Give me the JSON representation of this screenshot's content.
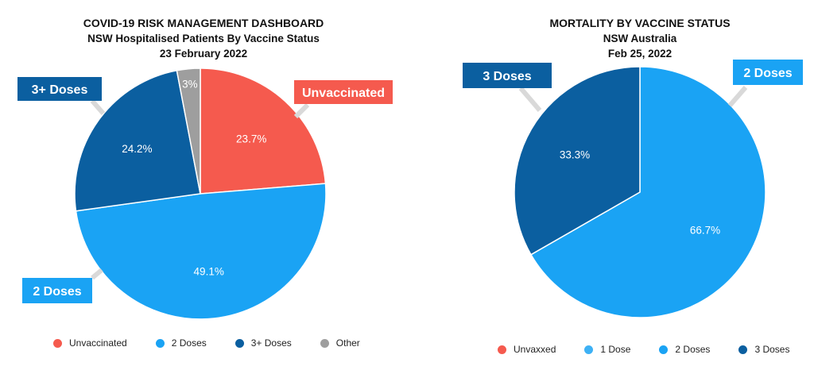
{
  "chart_data": [
    {
      "type": "pie",
      "title": "COVID-19 RISK MANAGEMENT DASHBOARD",
      "subtitle": "NSW Hospitalised Patients By Vaccine Status",
      "date": "23 February 2022",
      "slices": [
        {
          "label": "Unvaccinated",
          "value": 23.7,
          "value_label": "23.7%",
          "color": "#f55a4e",
          "callout": "Unvaccinated"
        },
        {
          "label": "2 Doses",
          "value": 49.1,
          "value_label": "49.1%",
          "color": "#1aa3f4",
          "callout": "2 Doses"
        },
        {
          "label": "3+ Doses",
          "value": 24.2,
          "value_label": "24.2%",
          "color": "#0b5fa0",
          "callout": "3+ Doses"
        },
        {
          "label": "Other",
          "value": 3,
          "value_label": "3%",
          "color": "#9e9e9e",
          "callout": ""
        }
      ],
      "legend": [
        {
          "label": "Unvaccinated",
          "color": "#f55a4e"
        },
        {
          "label": "2 Doses",
          "color": "#1aa3f4"
        },
        {
          "label": "3+ Doses",
          "color": "#0b5fa0"
        },
        {
          "label": "Other",
          "color": "#9e9e9e"
        }
      ],
      "legend_position": "bottom"
    },
    {
      "type": "pie",
      "title": "MORTALITY BY VACCINE STATUS",
      "subtitle": "NSW Australia",
      "date": "Feb 25, 2022",
      "slices": [
        {
          "label": "2 Doses",
          "value": 66.7,
          "value_label": "66.7%",
          "color": "#1aa3f4",
          "callout": "2 Doses"
        },
        {
          "label": "3 Doses",
          "value": 33.3,
          "value_label": "33.3%",
          "color": "#0b5fa0",
          "callout": "3 Doses"
        }
      ],
      "legend": [
        {
          "label": "Unvaxxed",
          "color": "#f55a4e"
        },
        {
          "label": "1 Dose",
          "color": "#3db1f5"
        },
        {
          "label": "2 Doses",
          "color": "#1aa3f4"
        },
        {
          "label": "3 Doses",
          "color": "#0b5fa0"
        }
      ],
      "legend_position": "bottom"
    }
  ]
}
